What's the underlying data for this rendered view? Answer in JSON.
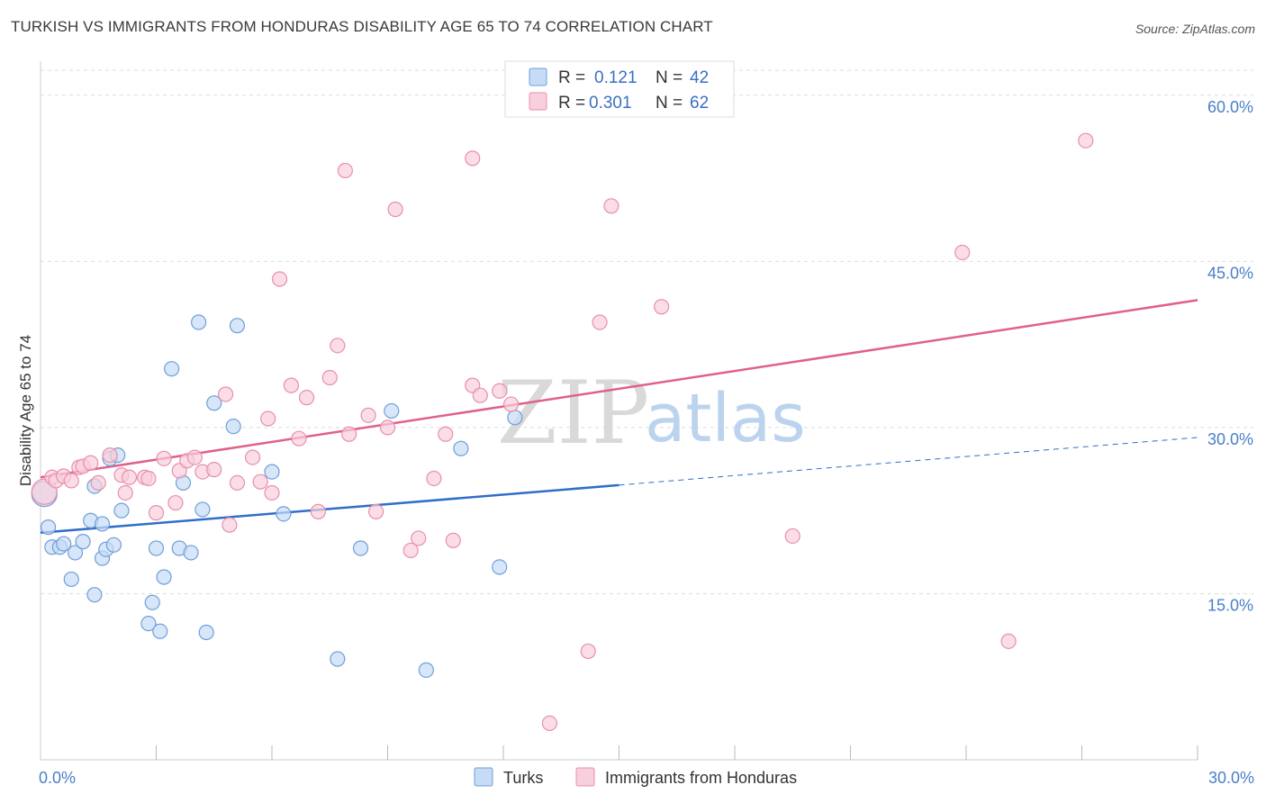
{
  "header": {
    "title": "TURKISH VS IMMIGRANTS FROM HONDURAS DISABILITY AGE 65 TO 74 CORRELATION CHART",
    "source": "Source: ZipAtlas.com"
  },
  "watermark": {
    "zip": "ZIP",
    "atlas": "atlas"
  },
  "colors": {
    "turks": "#6f9fd8",
    "turks_fill": "#c6dbf5",
    "turks_line": "#2f6fc9",
    "honduras": "#e98fab",
    "honduras_fill": "#f8cfdc",
    "honduras_line": "#e0608a",
    "grid": "#dddddd",
    "tick_text": "#4a7fc8"
  },
  "legend": {
    "rows": [
      {
        "r_label": "R =",
        "r_value": "0.121",
        "n_label": "N =",
        "n_value": "42"
      },
      {
        "r_label": "R =",
        "r_value": "0.301",
        "n_label": "N =",
        "n_value": "62"
      }
    ]
  },
  "chart_data": {
    "type": "scatter",
    "title": "TURKISH VS IMMIGRANTS FROM HONDURAS DISABILITY AGE 65 TO 74 CORRELATION CHART",
    "xlabel": "",
    "ylabel": "Disability Age 65 to 74",
    "xlim": [
      0,
      30
    ],
    "ylim": [
      0,
      62.5
    ],
    "x_tick_labels": [
      "0.0%",
      "30.0%"
    ],
    "y_ticks": [
      15,
      30,
      45,
      60
    ],
    "y_tick_labels": [
      "15.0%",
      "30.0%",
      "45.0%",
      "60.0%"
    ],
    "grid": true,
    "legend_position": "top-center",
    "series": [
      {
        "name": "Turks",
        "points": [
          [
            0.1,
            24.0
          ],
          [
            0.2,
            21.0
          ],
          [
            0.3,
            19.2
          ],
          [
            0.5,
            19.2
          ],
          [
            0.6,
            19.5
          ],
          [
            0.8,
            16.3
          ],
          [
            0.9,
            18.7
          ],
          [
            1.1,
            19.7
          ],
          [
            1.3,
            21.6
          ],
          [
            1.4,
            14.9
          ],
          [
            1.4,
            24.7
          ],
          [
            1.6,
            21.3
          ],
          [
            1.6,
            18.2
          ],
          [
            1.7,
            19.0
          ],
          [
            1.8,
            27.2
          ],
          [
            1.9,
            19.4
          ],
          [
            2.0,
            27.5
          ],
          [
            2.1,
            22.5
          ],
          [
            2.8,
            12.3
          ],
          [
            2.9,
            14.2
          ],
          [
            3.0,
            19.1
          ],
          [
            3.1,
            11.6
          ],
          [
            3.2,
            16.5
          ],
          [
            3.4,
            35.3
          ],
          [
            3.6,
            19.1
          ],
          [
            3.7,
            25.0
          ],
          [
            3.9,
            18.7
          ],
          [
            4.1,
            39.5
          ],
          [
            4.2,
            22.6
          ],
          [
            4.3,
            11.5
          ],
          [
            4.5,
            32.2
          ],
          [
            5.0,
            30.1
          ],
          [
            5.1,
            39.2
          ],
          [
            6.0,
            26.0
          ],
          [
            6.3,
            22.2
          ],
          [
            7.7,
            9.1
          ],
          [
            8.3,
            19.1
          ],
          [
            9.1,
            31.5
          ],
          [
            10.0,
            8.1
          ],
          [
            10.9,
            28.1
          ],
          [
            11.9,
            17.4
          ],
          [
            12.3,
            30.9
          ]
        ],
        "trend": {
          "x": [
            0,
            15
          ],
          "y": [
            20.5,
            24.8
          ]
        },
        "trend_extension": {
          "x": [
            15,
            30
          ],
          "y": [
            24.8,
            29.1
          ]
        }
      },
      {
        "name": "Immigrants from Honduras",
        "points": [
          [
            0.1,
            24.2
          ],
          [
            0.3,
            25.5
          ],
          [
            0.4,
            25.2
          ],
          [
            0.6,
            25.6
          ],
          [
            0.8,
            25.2
          ],
          [
            1.0,
            26.4
          ],
          [
            1.1,
            26.5
          ],
          [
            1.3,
            26.8
          ],
          [
            1.5,
            25.0
          ],
          [
            1.8,
            27.5
          ],
          [
            2.1,
            25.7
          ],
          [
            2.2,
            24.1
          ],
          [
            2.3,
            25.5
          ],
          [
            2.7,
            25.5
          ],
          [
            2.8,
            25.4
          ],
          [
            3.0,
            22.3
          ],
          [
            3.2,
            27.2
          ],
          [
            3.5,
            23.2
          ],
          [
            3.6,
            26.1
          ],
          [
            3.8,
            27.0
          ],
          [
            4.0,
            27.3
          ],
          [
            4.2,
            26.0
          ],
          [
            4.5,
            26.2
          ],
          [
            4.8,
            33.0
          ],
          [
            4.9,
            21.2
          ],
          [
            5.1,
            25.0
          ],
          [
            5.5,
            27.3
          ],
          [
            5.7,
            25.1
          ],
          [
            5.9,
            30.8
          ],
          [
            6.0,
            24.1
          ],
          [
            6.2,
            43.4
          ],
          [
            6.5,
            33.8
          ],
          [
            6.7,
            29.0
          ],
          [
            6.9,
            32.7
          ],
          [
            7.2,
            22.4
          ],
          [
            7.5,
            34.5
          ],
          [
            7.7,
            37.4
          ],
          [
            7.9,
            53.2
          ],
          [
            8.0,
            29.4
          ],
          [
            8.5,
            31.1
          ],
          [
            8.7,
            22.4
          ],
          [
            9.0,
            30.0
          ],
          [
            9.2,
            49.7
          ],
          [
            9.6,
            18.9
          ],
          [
            9.8,
            20.0
          ],
          [
            10.2,
            25.4
          ],
          [
            10.5,
            29.4
          ],
          [
            10.7,
            19.8
          ],
          [
            11.2,
            33.8
          ],
          [
            11.2,
            54.3
          ],
          [
            11.4,
            32.9
          ],
          [
            11.9,
            33.3
          ],
          [
            12.2,
            32.1
          ],
          [
            13.2,
            3.3
          ],
          [
            14.2,
            9.8
          ],
          [
            14.5,
            39.5
          ],
          [
            14.8,
            50.0
          ],
          [
            16.1,
            40.9
          ],
          [
            19.5,
            20.2
          ],
          [
            23.9,
            45.8
          ],
          [
            25.1,
            10.7
          ],
          [
            27.1,
            55.9
          ]
        ],
        "trend": {
          "x": [
            0,
            30
          ],
          "y": [
            25.5,
            41.5
          ]
        }
      }
    ]
  }
}
